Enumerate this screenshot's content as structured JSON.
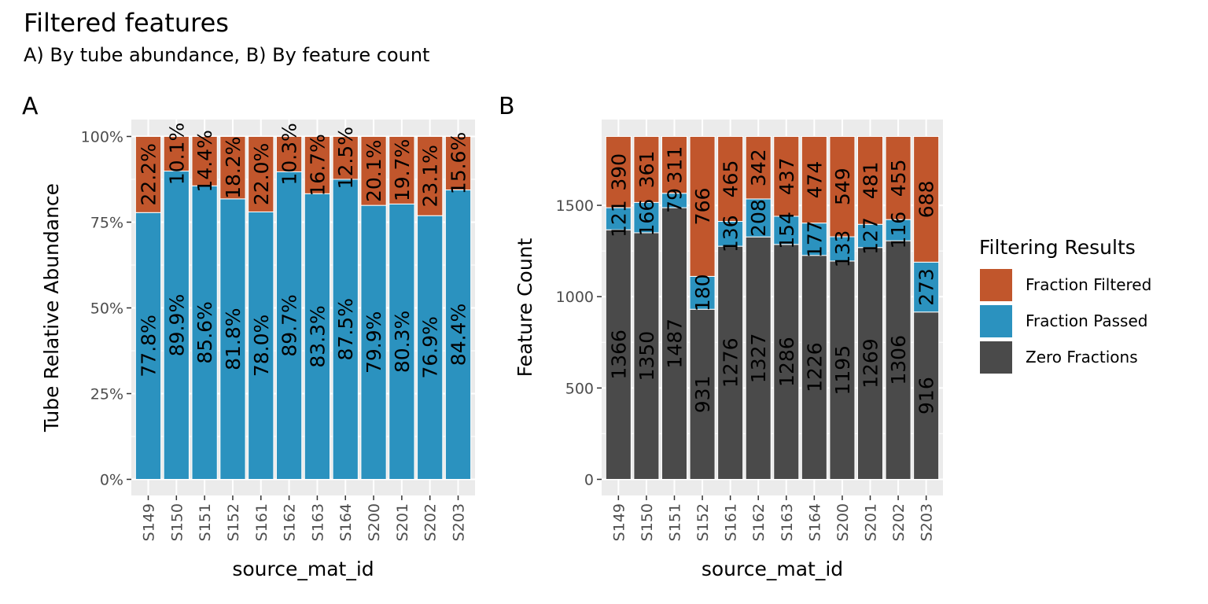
{
  "title": "Filtered features",
  "subtitle": "A) By tube abundance, B) By feature count",
  "panel_tags": {
    "a": "A",
    "b": "B"
  },
  "colors": {
    "filtered": "#c1562c",
    "passed": "#2b92bf",
    "zero": "#4a4a4a",
    "panel_bg": "#ebebeb",
    "grid": "#ffffff"
  },
  "legend": {
    "title": "Filtering Results",
    "items": [
      {
        "label": "Fraction Filtered",
        "color": "#c1562c"
      },
      {
        "label": "Fraction Passed",
        "color": "#2b92bf"
      },
      {
        "label": "Zero Fractions",
        "color": "#4a4a4a"
      }
    ]
  },
  "chart_data": [
    {
      "type": "bar",
      "stacked": true,
      "panel": "A",
      "xlabel": "source_mat_id",
      "ylabel": "Tube Relative Abundance",
      "ylim": [
        0,
        100
      ],
      "yticks": [
        "0%",
        "25%",
        "50%",
        "75%",
        "100%"
      ],
      "categories": [
        "S149",
        "S150",
        "S151",
        "S152",
        "S161",
        "S162",
        "S163",
        "S164",
        "S200",
        "S201",
        "S202",
        "S203"
      ],
      "series": [
        {
          "name": "Fraction Passed",
          "values": [
            77.8,
            89.9,
            85.6,
            81.8,
            78.0,
            89.7,
            83.3,
            87.5,
            79.9,
            80.3,
            76.9,
            84.4
          ],
          "labels": [
            "77.8%",
            "89.9%",
            "85.6%",
            "81.8%",
            "78.0%",
            "89.7%",
            "83.3%",
            "87.5%",
            "79.9%",
            "80.3%",
            "76.9%",
            "84.4%"
          ]
        },
        {
          "name": "Fraction Filtered",
          "values": [
            22.2,
            10.1,
            14.4,
            18.2,
            22.0,
            10.3,
            16.7,
            12.5,
            20.1,
            19.7,
            23.1,
            15.6
          ],
          "labels": [
            "22.2%",
            "10.1%",
            "14.4%",
            "18.2%",
            "22.0%",
            "10.3%",
            "16.7%",
            "12.5%",
            "20.1%",
            "19.7%",
            "23.1%",
            "15.6%"
          ]
        }
      ]
    },
    {
      "type": "bar",
      "stacked": true,
      "panel": "B",
      "xlabel": "source_mat_id",
      "ylabel": "Feature Count",
      "ylim": [
        0,
        1877
      ],
      "yticks": [
        "0",
        "500",
        "1000",
        "1500"
      ],
      "categories": [
        "S149",
        "S150",
        "S151",
        "S152",
        "S161",
        "S162",
        "S163",
        "S164",
        "S200",
        "S201",
        "S202",
        "S203"
      ],
      "series": [
        {
          "name": "Zero Fractions",
          "values": [
            1366,
            1350,
            1487,
            931,
            1276,
            1327,
            1286,
            1226,
            1195,
            1269,
            1306,
            916
          ],
          "labels": [
            "1366",
            "1350",
            "1487",
            "931",
            "1276",
            "1327",
            "1286",
            "1226",
            "1195",
            "1269",
            "1306",
            "916"
          ]
        },
        {
          "name": "Fraction Passed",
          "values": [
            121,
            166,
            79,
            180,
            136,
            208,
            154,
            177,
            133,
            127,
            116,
            273
          ],
          "labels": [
            "121",
            "166",
            "79",
            "180",
            "136",
            "208",
            "154",
            "177",
            "133",
            "127",
            "116",
            "273"
          ]
        },
        {
          "name": "Fraction Filtered",
          "values": [
            390,
            361,
            311,
            766,
            465,
            342,
            437,
            474,
            549,
            481,
            455,
            688
          ],
          "labels": [
            "390",
            "361",
            "311",
            "766",
            "465",
            "342",
            "437",
            "474",
            "549",
            "481",
            "455",
            "688"
          ]
        }
      ]
    }
  ]
}
